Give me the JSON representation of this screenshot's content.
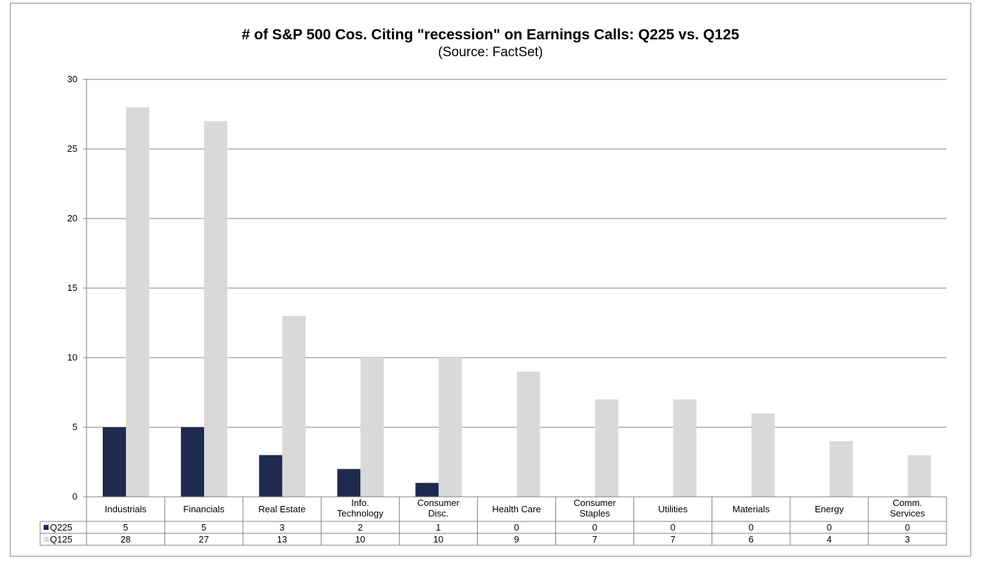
{
  "chart_data": {
    "type": "bar",
    "title": "# of S&P 500 Cos. Citing \"recession\" on Earnings Calls: Q225 vs. Q125",
    "subtitle": "(Source: FactSet)",
    "categories": [
      [
        "Industrials"
      ],
      [
        "Financials"
      ],
      [
        "Real Estate"
      ],
      [
        "Info.",
        "Technology"
      ],
      [
        "Consumer",
        "Disc."
      ],
      [
        "Health Care"
      ],
      [
        "Consumer",
        "Staples"
      ],
      [
        "Utilities"
      ],
      [
        "Materials"
      ],
      [
        "Energy"
      ],
      [
        "Comm.",
        "Services"
      ]
    ],
    "series": [
      {
        "name": "Q225",
        "color": "#1f2a50",
        "values": [
          5,
          5,
          3,
          2,
          1,
          0,
          0,
          0,
          0,
          0,
          0
        ]
      },
      {
        "name": "Q125",
        "color": "#d9d9d9",
        "values": [
          28,
          27,
          13,
          10,
          10,
          9,
          7,
          7,
          6,
          4,
          3
        ]
      }
    ],
    "ylim": [
      0,
      30
    ],
    "yticks": [
      0,
      5,
      10,
      15,
      20,
      25,
      30
    ],
    "xlabel": "",
    "ylabel": "",
    "grid": true,
    "legend": "data-table-left"
  }
}
